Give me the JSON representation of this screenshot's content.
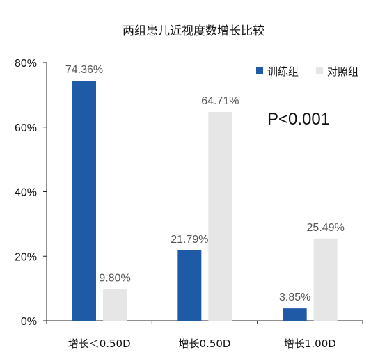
{
  "chart_data": {
    "type": "bar",
    "title": "两组患儿近视度数增长比较",
    "categories": [
      "增长＜0.50D",
      "增长0.50D",
      "增长1.00D"
    ],
    "series": [
      {
        "name": "训练组",
        "color": "#1f5aa6",
        "values": [
          74.36,
          21.79,
          3.85
        ],
        "labels": [
          "74.36%",
          "21.79%",
          "3.85%"
        ]
      },
      {
        "name": "对照组",
        "color": "#e6e6e6",
        "values": [
          9.8,
          64.71,
          25.49
        ],
        "labels": [
          "9.80%",
          "64.71%",
          "25.49%"
        ]
      }
    ],
    "ylim": [
      0,
      80
    ],
    "yticks": [
      0,
      20,
      40,
      60,
      80
    ],
    "ytick_labels": [
      "0%",
      "20%",
      "40%",
      "60%",
      "80%"
    ],
    "xlabel": "",
    "ylabel": "",
    "grid": false,
    "legend_position": "top-right",
    "annotation": "P<0.001",
    "label_color": "#555555"
  }
}
